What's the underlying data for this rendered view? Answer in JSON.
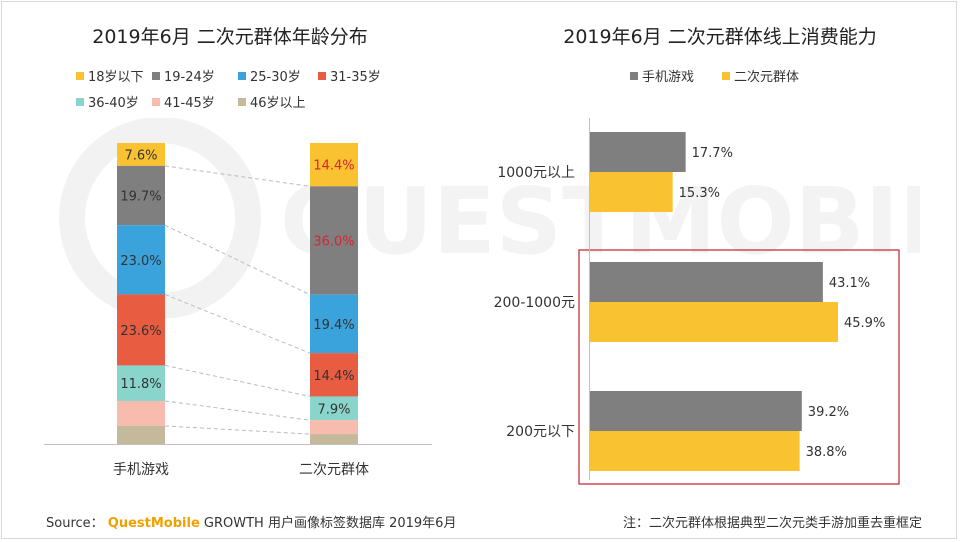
{
  "colors": {
    "age_18_below": "#f9c231",
    "age_19_24": "#7f7f7f",
    "age_25_30": "#3aa3db",
    "age_31_35": "#e85c42",
    "age_36_40": "#89d4cb",
    "age_41_45": "#f7bcad",
    "age_46_up": "#c4b99a",
    "bar_mobile_game": "#7f7f7f",
    "bar_acg_group": "#f9c231",
    "highlight_box": "#c9303e",
    "label_red": "#d9232f"
  },
  "left_chart": {
    "title": "2019年6月 二次元群体年龄分布",
    "legend": [
      "18岁以下",
      "19-24岁",
      "25-30岁",
      "31-35岁",
      "36-40岁",
      "41-45岁",
      "46岁以上"
    ],
    "chart_data": {
      "type": "bar",
      "stacked": true,
      "percent": true,
      "categories": [
        "手机游戏",
        "二次元群体"
      ],
      "series": [
        {
          "name": "18岁以下",
          "values": [
            7.6,
            14.4
          ],
          "labels": [
            "7.6%",
            "14.4%"
          ]
        },
        {
          "name": "19-24岁",
          "values": [
            19.7,
            36.0
          ],
          "labels": [
            "19.7%",
            "36.0%"
          ]
        },
        {
          "name": "25-30岁",
          "values": [
            23.0,
            19.4
          ],
          "labels": [
            "23.0%",
            "19.4%"
          ]
        },
        {
          "name": "31-35岁",
          "values": [
            23.6,
            14.4
          ],
          "labels": [
            "23.6%",
            "14.4%"
          ]
        },
        {
          "name": "36-40岁",
          "values": [
            11.8,
            7.9
          ],
          "labels": [
            "11.8%",
            "7.9%"
          ]
        },
        {
          "name": "41-45岁",
          "values": [
            8.3,
            4.6
          ],
          "labels": [
            "",
            ""
          ]
        },
        {
          "name": "46岁以上",
          "values": [
            6.0,
            3.3
          ],
          "labels": [
            "",
            ""
          ]
        }
      ],
      "label_colors": [
        [
          "#333333",
          "#d9232f"
        ],
        [
          "#333333",
          "#d9232f"
        ],
        [
          "#333333",
          "#333333"
        ],
        [
          "#333333",
          "#333333"
        ],
        [
          "#333333",
          "#333333"
        ],
        [
          "#333333",
          "#333333"
        ],
        [
          "#333333",
          "#333333"
        ]
      ],
      "connector_lines": "dashed"
    }
  },
  "right_chart": {
    "title": "2019年6月 二次元群体线上消费能力",
    "legend": [
      "手机游戏",
      "二次元群体"
    ],
    "chart_data": {
      "type": "bar",
      "orientation": "horizontal",
      "categories": [
        "1000元以上",
        "200-1000元",
        "200元以下"
      ],
      "series": [
        {
          "name": "手机游戏",
          "values": [
            17.7,
            43.1,
            39.2
          ],
          "labels": [
            "17.7%",
            "43.1%",
            "39.2%"
          ]
        },
        {
          "name": "二次元群体",
          "values": [
            15.3,
            45.9,
            38.8
          ],
          "labels": [
            "15.3%",
            "45.9%",
            "38.8%"
          ]
        }
      ],
      "highlighted_categories": [
        "200-1000元",
        "200元以下"
      ]
    }
  },
  "footer": {
    "source_prefix": "Source：",
    "brand": "QuestMobile",
    "source_suffix": "GROWTH 用户画像标签数据库 2019年6月",
    "note": "注：二次元群体根据典型二次元类手游加重去重框定"
  },
  "watermark": {
    "text": "QUESTMOBILE"
  }
}
